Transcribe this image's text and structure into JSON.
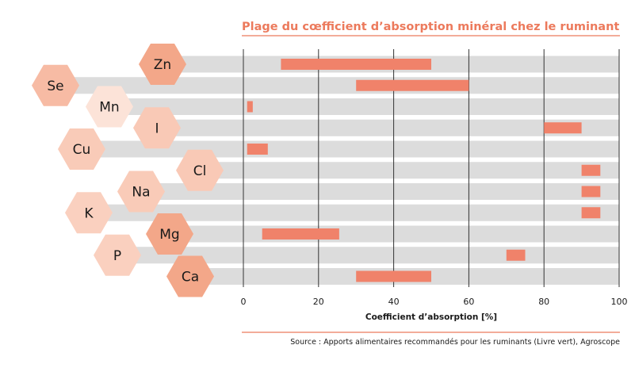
{
  "chart_data": {
    "type": "bar",
    "subtype": "floating-range",
    "orientation": "horizontal",
    "title": "Plage du cœfficient d’absorption minéral chez le ruminant",
    "xlabel": "Coefficient d’absorption [%]",
    "xlim": [
      0,
      100
    ],
    "xticks": [
      "0",
      "20",
      "40",
      "60",
      "80",
      "100"
    ],
    "grid": true,
    "source": "Source : Apports alimentaires recommandés pour les ruminants (Livre vert), Agroscope",
    "colors": {
      "title": "#ec7a5c",
      "bar": "#f0826a",
      "track": "#dcdcdc",
      "rule": "#ec7a5c",
      "gridline": "#333333"
    },
    "categories": [
      "Zn",
      "Se",
      "Mn",
      "I",
      "Cu",
      "Cl",
      "Na",
      "K",
      "Mg",
      "P",
      "Ca"
    ],
    "ranges": [
      {
        "element": "Zn",
        "min": 10,
        "max": 50,
        "hex_color": "#f3a789"
      },
      {
        "element": "Se",
        "min": 30,
        "max": 60,
        "hex_color": "#f7bba4"
      },
      {
        "element": "Mn",
        "min": 1,
        "max": 2.5,
        "hex_color": "#fce3d8"
      },
      {
        "element": "I",
        "min": 80,
        "max": 90,
        "hex_color": "#f9c9b6"
      },
      {
        "element": "Cu",
        "min": 1,
        "max": 6.5,
        "hex_color": "#f9cbb8"
      },
      {
        "element": "Cl",
        "min": 90,
        "max": 95,
        "hex_color": "#f9c9b6"
      },
      {
        "element": "Na",
        "min": 90,
        "max": 95,
        "hex_color": "#f9cbb8"
      },
      {
        "element": "K",
        "min": 90,
        "max": 95,
        "hex_color": "#fad0bf"
      },
      {
        "element": "Mg",
        "min": 5,
        "max": 25.5,
        "hex_color": "#f3a789"
      },
      {
        "element": "P",
        "min": 70,
        "max": 75,
        "hex_color": "#fad0bf"
      },
      {
        "element": "Ca",
        "min": 30,
        "max": 50,
        "hex_color": "#f3a789"
      }
    ]
  }
}
